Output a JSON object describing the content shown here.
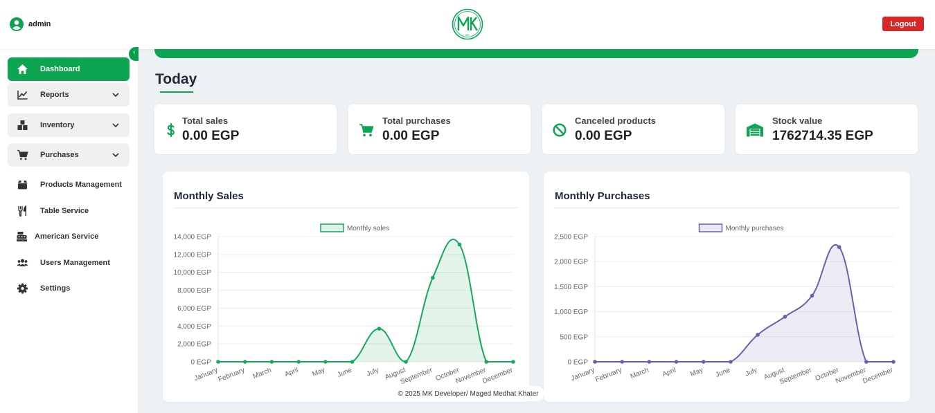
{
  "header": {
    "user_name": "admin",
    "logo_text": "MK",
    "logout_label": "Logout"
  },
  "sidebar": {
    "items": [
      {
        "label": "Dashboard",
        "icon": "home-icon"
      },
      {
        "label": "Reports",
        "icon": "chart-line-icon"
      },
      {
        "label": "Inventory",
        "icon": "boxes-icon"
      },
      {
        "label": "Purchases",
        "icon": "cart-icon"
      },
      {
        "label": "Products Management",
        "icon": "box-icon"
      },
      {
        "label": "Table Service",
        "icon": "utensils-icon"
      },
      {
        "label": "American Service",
        "icon": "cash-register-icon"
      },
      {
        "label": "Users Management",
        "icon": "users-icon"
      },
      {
        "label": "Settings",
        "icon": "gear-icon"
      }
    ]
  },
  "main": {
    "heading": "Today",
    "stats": [
      {
        "label": "Total sales",
        "value": "0.00 EGP",
        "icon": "dollar-icon"
      },
      {
        "label": "Total purchases",
        "value": "0.00 EGP",
        "icon": "cart-icon"
      },
      {
        "label": "Canceled products",
        "value": "0.00 EGP",
        "icon": "ban-icon"
      },
      {
        "label": "Stock value",
        "value": "1762714.35 EGP",
        "icon": "warehouse-icon"
      }
    ],
    "sales_card_title": "Monthly Sales",
    "purchases_card_title": "Monthly Purchases"
  },
  "colors": {
    "accent": "#0ca653",
    "sales_line": "#17a85c",
    "purchases_line": "#6a5fae",
    "logout": "#d62828"
  },
  "chart_data": [
    {
      "type": "area",
      "title": "Monthly Sales",
      "legend": "Monthly sales",
      "categories": [
        "January",
        "February",
        "March",
        "April",
        "May",
        "June",
        "July",
        "August",
        "September",
        "October",
        "November",
        "December"
      ],
      "series": [
        {
          "name": "Monthly sales",
          "values": [
            0,
            0,
            0,
            0,
            0,
            0,
            3700,
            0,
            9400,
            13100,
            0,
            0
          ]
        }
      ],
      "yticks": [
        "0 EGP",
        "2,000 EGP",
        "4,000 EGP",
        "6,000 EGP",
        "8,000 EGP",
        "10,000 EGP",
        "12,000 EGP",
        "14,000 EGP"
      ],
      "ylim": [
        0,
        14000
      ],
      "legend_position": "top",
      "grid": true
    },
    {
      "type": "area",
      "title": "Monthly Purchases",
      "legend": "Monthly purchases",
      "categories": [
        "January",
        "February",
        "March",
        "April",
        "May",
        "June",
        "July",
        "August",
        "September",
        "October",
        "November",
        "December"
      ],
      "series": [
        {
          "name": "Monthly purchases",
          "values": [
            0,
            0,
            0,
            0,
            0,
            0,
            540,
            900,
            1320,
            2290,
            0,
            0
          ]
        }
      ],
      "yticks": [
        "0 EGP",
        "500 EGP",
        "1,000 EGP",
        "1,500 EGP",
        "2,000 EGP",
        "2,500 EGP"
      ],
      "ylim": [
        0,
        2500
      ],
      "legend_position": "top",
      "grid": true
    }
  ],
  "footer": {
    "text": "© 2025 MK Developer/ Maged Medhat Khater"
  }
}
